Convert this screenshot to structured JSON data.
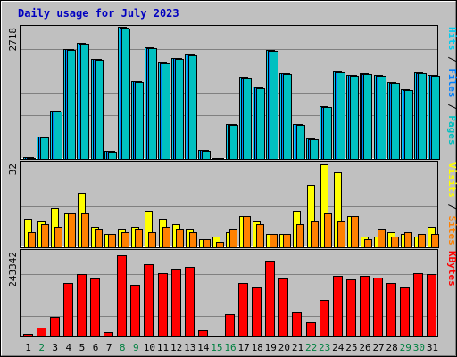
{
  "title": "Daily usage for July 2023",
  "colors": {
    "background": "#c0c0c0",
    "title": "#0000c0",
    "hits": "#00ccee",
    "files": "#0080ff",
    "pages": "#00c0c0",
    "visits": "#ffff00",
    "sites": "#ff8000",
    "kbytes": "#ff0000",
    "weekend_day": "#008040",
    "weekday_day": "#000000",
    "grid": "#808080"
  },
  "chart_data": [
    {
      "type": "bar",
      "panel": "hits-files-pages",
      "categories": [
        "1",
        "2",
        "3",
        "4",
        "5",
        "6",
        "7",
        "8",
        "9",
        "10",
        "11",
        "12",
        "13",
        "14",
        "15",
        "16",
        "17",
        "18",
        "19",
        "20",
        "21",
        "22",
        "23",
        "24",
        "25",
        "26",
        "27",
        "28",
        "29",
        "30",
        "31"
      ],
      "y_axis_max_label": "2718",
      "ylim": [
        0,
        2718
      ],
      "y_side_label": {
        "parts": [
          "Pages",
          "Files",
          "Hits"
        ],
        "separator": " / "
      },
      "series": [
        {
          "name": "Hits",
          "values": [
            40,
            460,
            1000,
            2260,
            2380,
            2060,
            170,
            2718,
            1600,
            2290,
            1980,
            2080,
            2150,
            180,
            25,
            720,
            1690,
            1480,
            2240,
            1770,
            720,
            420,
            1080,
            1800,
            1730,
            1760,
            1720,
            1580,
            1430,
            1780,
            1730
          ]
        },
        {
          "name": "Files",
          "values": [
            30,
            455,
            990,
            2250,
            2370,
            2050,
            160,
            2700,
            1590,
            2280,
            1970,
            2070,
            2140,
            175,
            20,
            710,
            1680,
            1470,
            2230,
            1760,
            710,
            410,
            1070,
            1790,
            1720,
            1750,
            1710,
            1570,
            1420,
            1770,
            1720
          ]
        },
        {
          "name": "Pages",
          "values": [
            20,
            440,
            980,
            2240,
            2360,
            2040,
            150,
            2690,
            1580,
            2270,
            1960,
            2060,
            2130,
            170,
            15,
            700,
            1670,
            1460,
            2220,
            1750,
            700,
            400,
            1060,
            1780,
            1710,
            1740,
            1700,
            1560,
            1410,
            1760,
            1710
          ]
        }
      ]
    },
    {
      "type": "bar",
      "panel": "visits-sites",
      "categories": [
        "1",
        "2",
        "3",
        "4",
        "5",
        "6",
        "7",
        "8",
        "9",
        "10",
        "11",
        "12",
        "13",
        "14",
        "15",
        "16",
        "17",
        "18",
        "19",
        "20",
        "21",
        "22",
        "23",
        "24",
        "25",
        "26",
        "27",
        "28",
        "29",
        "30",
        "31"
      ],
      "y_axis_max_label": "32",
      "ylim": [
        0,
        32
      ],
      "y_side_label": {
        "parts": [
          "Sites",
          "Visits"
        ],
        "separator": " / "
      },
      "series": [
        {
          "name": "Visits",
          "values": [
            11,
            10,
            15,
            13,
            21,
            8,
            5,
            7,
            8,
            14,
            11,
            9,
            7,
            3,
            4,
            6,
            12,
            10,
            5,
            5,
            14,
            24,
            32,
            29,
            12,
            4,
            4,
            6,
            5,
            4,
            8
          ]
        },
        {
          "name": "Sites",
          "values": [
            6,
            9,
            8,
            13,
            13,
            7,
            5,
            6,
            7,
            6,
            8,
            7,
            6,
            3,
            2,
            7,
            12,
            9,
            5,
            5,
            9,
            10,
            13,
            10,
            12,
            3,
            7,
            4,
            6,
            5,
            5
          ]
        }
      ]
    },
    {
      "type": "bar",
      "panel": "kbytes",
      "categories": [
        "1",
        "2",
        "3",
        "4",
        "5",
        "6",
        "7",
        "8",
        "9",
        "10",
        "11",
        "12",
        "13",
        "14",
        "15",
        "16",
        "17",
        "18",
        "19",
        "20",
        "21",
        "22",
        "23",
        "24",
        "25",
        "26",
        "27",
        "28",
        "29",
        "30",
        "31"
      ],
      "y_axis_max_label": "243342",
      "ylim": [
        0,
        243342
      ],
      "y_side_label": {
        "parts": [
          "KBytes"
        ],
        "separator": ""
      },
      "series": [
        {
          "name": "KBytes",
          "values": [
            8000,
            25000,
            57000,
            155000,
            182000,
            168000,
            14000,
            235000,
            151000,
            210000,
            184000,
            196000,
            201000,
            17000,
            2000,
            65000,
            155000,
            142000,
            220000,
            168000,
            70000,
            42000,
            105000,
            177000,
            165000,
            177000,
            172000,
            155000,
            143000,
            185000,
            182000
          ]
        }
      ]
    }
  ],
  "day_colors": [
    "weekday",
    "weekend",
    "weekday",
    "weekday",
    "weekday",
    "weekday",
    "weekday",
    "weekend",
    "weekend",
    "weekday",
    "weekday",
    "weekday",
    "weekday",
    "weekday",
    "weekend",
    "weekend",
    "weekday",
    "weekday",
    "weekday",
    "weekday",
    "weekday",
    "weekend",
    "weekend",
    "weekday",
    "weekday",
    "weekday",
    "weekday",
    "weekday",
    "weekend",
    "weekend",
    "weekday"
  ]
}
